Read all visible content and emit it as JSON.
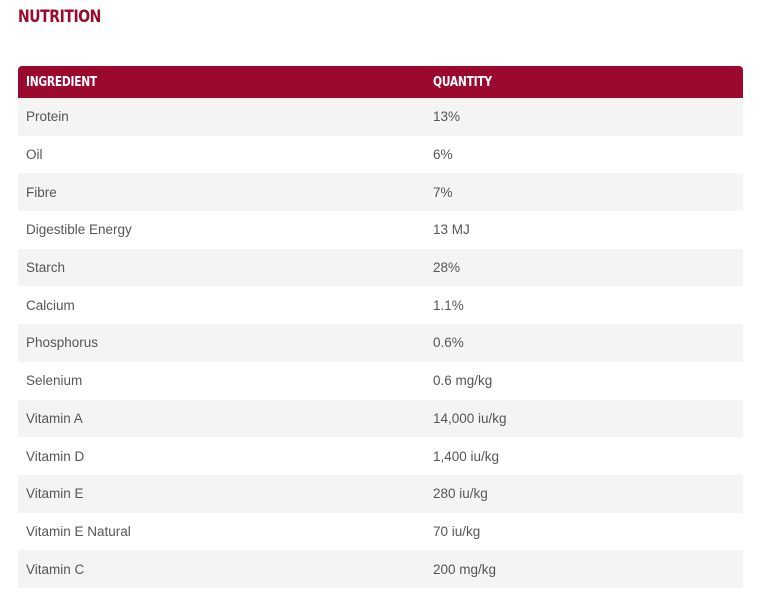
{
  "section": {
    "title": "NUTRITION"
  },
  "table": {
    "headers": {
      "ingredient": "INGREDIENT",
      "quantity": "QUANTITY"
    },
    "rows": [
      {
        "ingredient": "Protein",
        "quantity": "13%"
      },
      {
        "ingredient": "Oil",
        "quantity": "6%"
      },
      {
        "ingredient": "Fibre",
        "quantity": "7%"
      },
      {
        "ingredient": "Digestible Energy",
        "quantity": "13 MJ"
      },
      {
        "ingredient": "Starch",
        "quantity": "28%"
      },
      {
        "ingredient": "Calcium",
        "quantity": "1.1%"
      },
      {
        "ingredient": "Phosphorus",
        "quantity": "0.6%"
      },
      {
        "ingredient": "Selenium",
        "quantity": "0.6 mg/kg"
      },
      {
        "ingredient": "Vitamin A",
        "quantity": "14,000 iu/kg"
      },
      {
        "ingredient": "Vitamin D",
        "quantity": "1,400 iu/kg"
      },
      {
        "ingredient": "Vitamin E",
        "quantity": "280 iu/kg"
      },
      {
        "ingredient": "Vitamin E Natural",
        "quantity": "70 iu/kg"
      },
      {
        "ingredient": "Vitamin C",
        "quantity": "200 mg/kg"
      }
    ]
  },
  "colors": {
    "accent": "#9b0a2e",
    "row_alt": "#f4f4f4",
    "text": "#555555"
  }
}
